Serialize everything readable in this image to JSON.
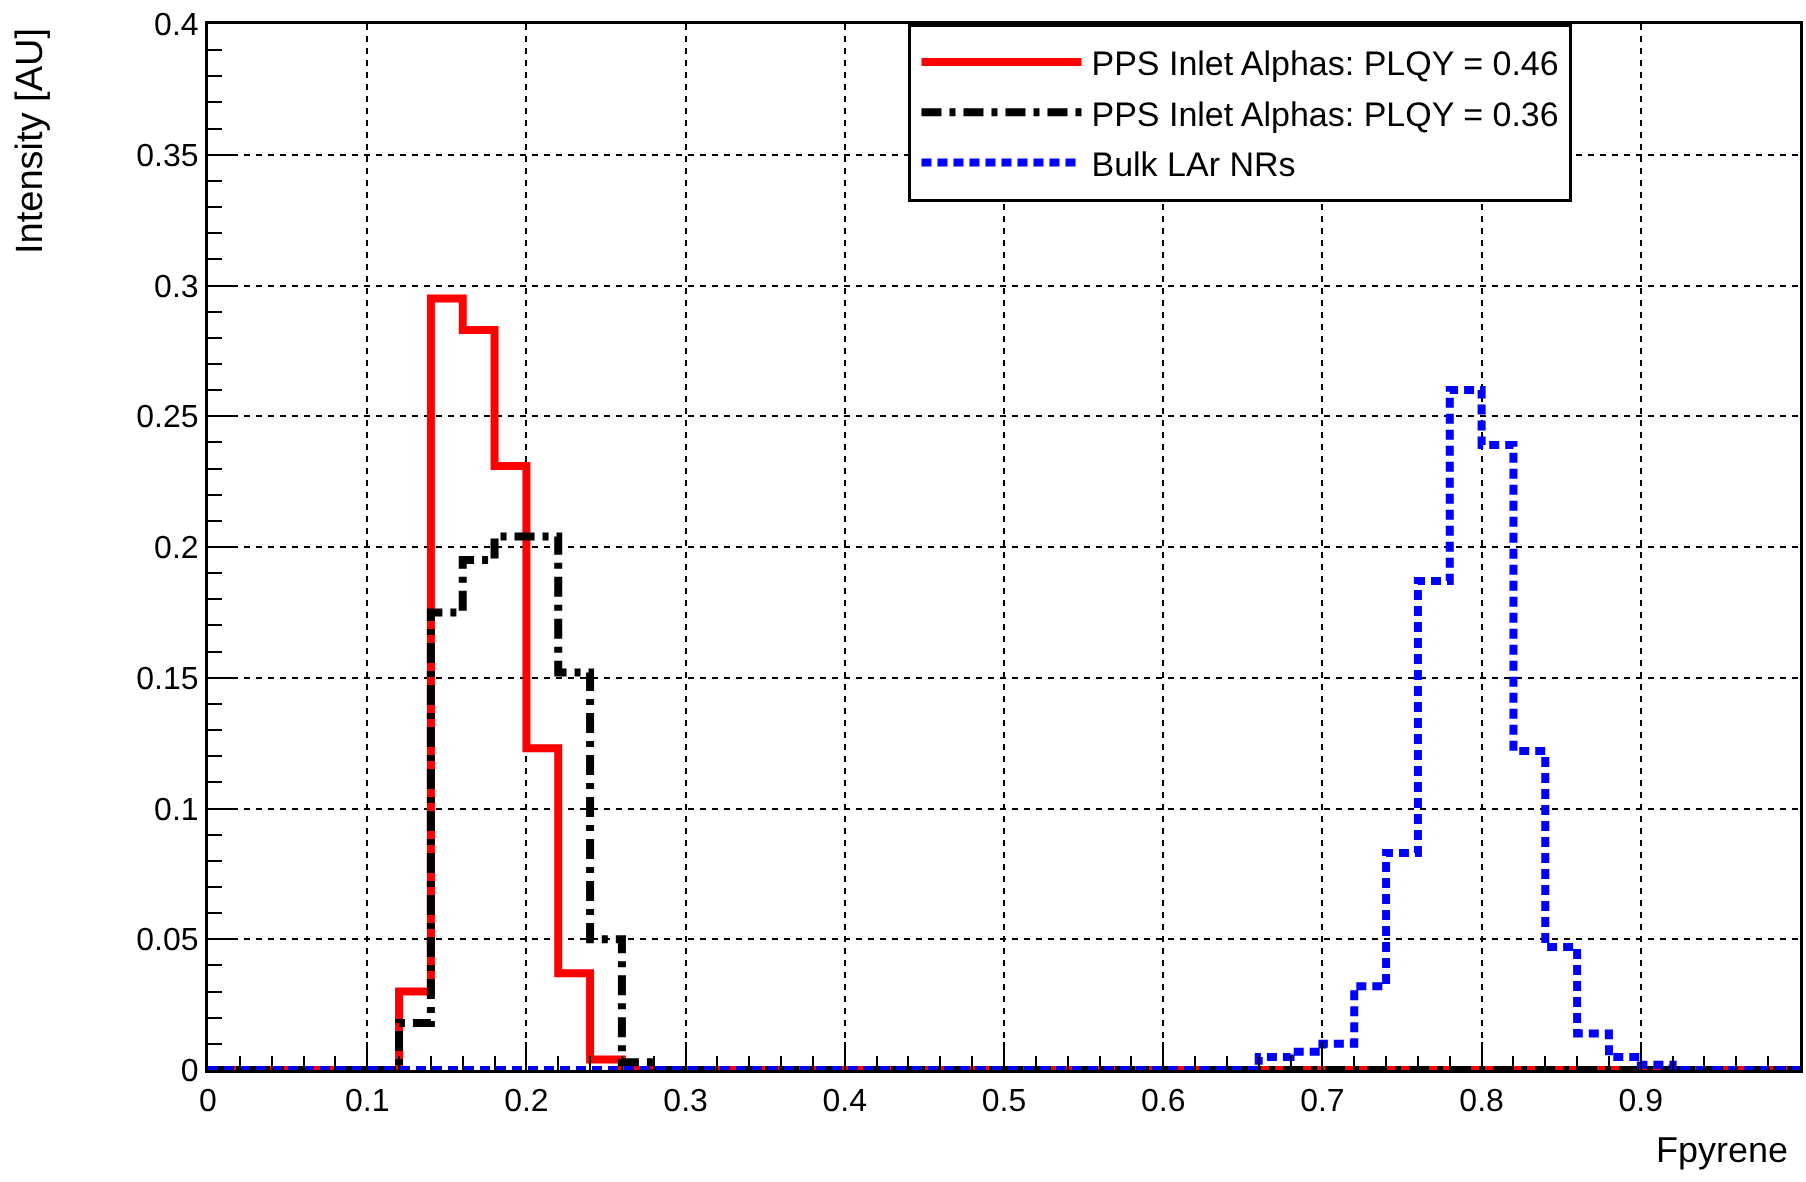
{
  "chart_data": {
    "type": "histogram",
    "xlabel": "Fpyrene",
    "ylabel": "Intensity [AU]",
    "bins": [
      0,
      0.02,
      0.04,
      0.06,
      0.08,
      0.1,
      0.12,
      0.14,
      0.16,
      0.18,
      0.2,
      0.22,
      0.24,
      0.26,
      0.28,
      0.3,
      0.32,
      0.34,
      0.36,
      0.38,
      0.4,
      0.42,
      0.44,
      0.46,
      0.48,
      0.5,
      0.52,
      0.54,
      0.56,
      0.58,
      0.6,
      0.62,
      0.64,
      0.66,
      0.68,
      0.7,
      0.72,
      0.74,
      0.76,
      0.78,
      0.8,
      0.82,
      0.84,
      0.86,
      0.88,
      0.9,
      0.92,
      0.94,
      0.96,
      0.98,
      1
    ],
    "series": [
      {
        "name": "PPS Inlet Alphas: PLQY = 0.46",
        "color": "#ff0000",
        "line_style": "solid",
        "values": [
          0,
          0,
          0,
          0,
          0,
          0,
          0.03,
          0.295,
          0.283,
          0.231,
          0.123,
          0.037,
          0.004,
          0,
          0,
          0,
          0,
          0,
          0,
          0,
          0,
          0,
          0,
          0,
          0,
          0,
          0,
          0,
          0,
          0,
          0,
          0,
          0,
          0,
          0,
          0,
          0,
          0,
          0,
          0,
          0,
          0,
          0,
          0,
          0,
          0,
          0,
          0,
          0,
          0
        ]
      },
      {
        "name": "PPS Inlet Alphas: PLQY = 0.36",
        "color": "#000000",
        "line_style": "dashed",
        "values": [
          0,
          0,
          0,
          0,
          0,
          0,
          0.018,
          0.175,
          0.195,
          0.204,
          0.204,
          0.152,
          0.05,
          0.003,
          0,
          0,
          0,
          0,
          0,
          0,
          0,
          0,
          0,
          0,
          0,
          0,
          0,
          0,
          0,
          0,
          0,
          0,
          0,
          0,
          0,
          0,
          0,
          0,
          0,
          0,
          0,
          0,
          0,
          0,
          0,
          0,
          0,
          0,
          0,
          0
        ]
      },
      {
        "name": "Bulk LAr NRs",
        "color": "#0000ff",
        "line_style": "dotted",
        "values": [
          0,
          0,
          0,
          0,
          0,
          0,
          0,
          0,
          0,
          0,
          0,
          0,
          0,
          0,
          0,
          0,
          0,
          0,
          0,
          0,
          0,
          0,
          0,
          0,
          0,
          0,
          0,
          0,
          0,
          0,
          0,
          0,
          0,
          0.005,
          0.007,
          0.01,
          0.032,
          0.083,
          0.187,
          0.26,
          0.239,
          0.122,
          0.047,
          0.014,
          0.005,
          0.002,
          0,
          0,
          0,
          0
        ]
      }
    ],
    "xlim": [
      0,
      1
    ],
    "xticks": [
      0,
      0.1,
      0.2,
      0.3,
      0.4,
      0.5,
      0.6,
      0.7,
      0.8,
      0.9
    ],
    "ylim": [
      0,
      0.4
    ],
    "yticks": [
      0,
      0.05,
      0.1,
      0.15,
      0.2,
      0.25,
      0.3,
      0.35,
      0.4
    ],
    "grid": true,
    "legend": "top right"
  }
}
